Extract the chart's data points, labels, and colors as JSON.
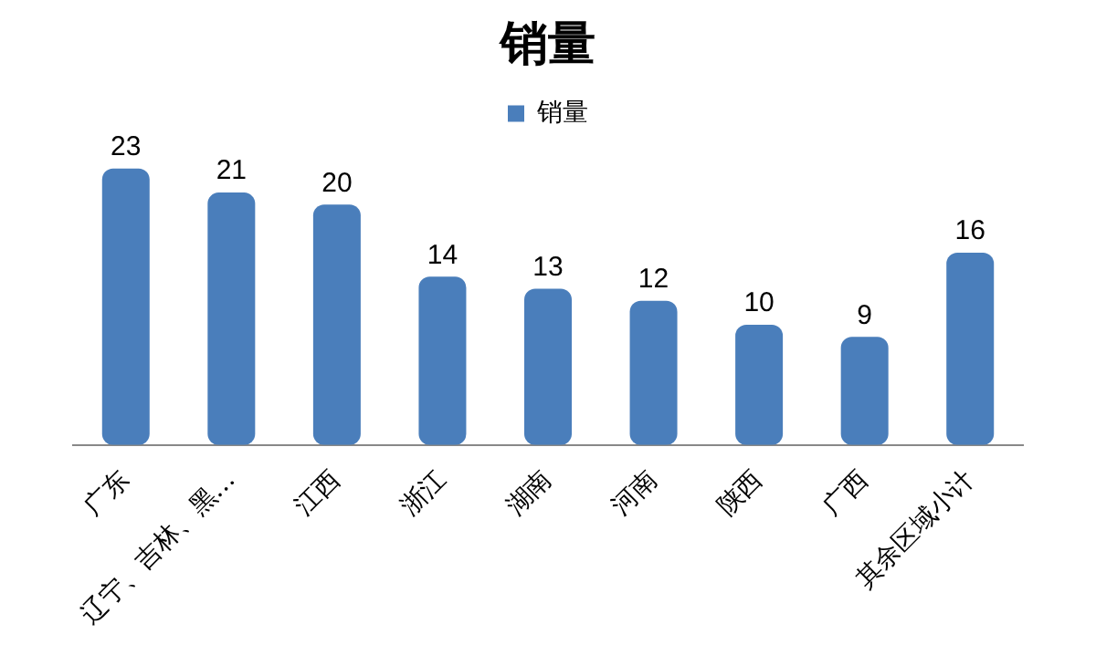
{
  "chart_data": {
    "type": "bar",
    "title": "销量",
    "categories": [
      "广东",
      "辽宁、吉林、黑…",
      "江西",
      "浙江",
      "湖南",
      "河南",
      "陕西",
      "广西",
      "其余区域小计"
    ],
    "series": [
      {
        "name": "销量",
        "color": "#4a7ebb",
        "values": [
          23,
          21,
          20,
          14,
          13,
          12,
          10,
          9,
          16
        ]
      }
    ],
    "data_labels": true,
    "legend": "top",
    "grid": false,
    "tick_labels": "x"
  }
}
